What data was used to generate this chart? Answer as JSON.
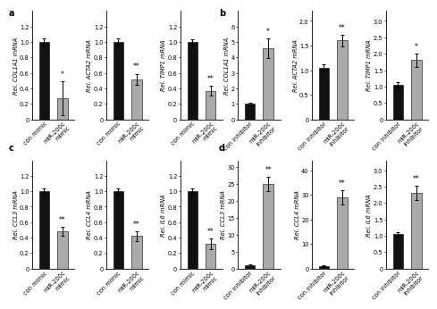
{
  "panels": {
    "a": {
      "label": "a",
      "subplots": [
        {
          "ylabel": "Rel. COL1A1 mRNA",
          "bars": [
            1.0,
            0.27
          ],
          "errors": [
            0.05,
            0.22
          ],
          "colors": [
            "#111111",
            "#aaaaaa"
          ],
          "xticks": [
            "con mimic",
            "miR-200c\nmimic"
          ],
          "ylim": [
            0,
            1.4
          ],
          "yticks": [
            0,
            0.2,
            0.4,
            0.6,
            0.8,
            1.0,
            1.2
          ],
          "ytick_labels": [
            "0",
            "0.2",
            "0.4",
            "0.6",
            "0.8",
            "1.0",
            "1.2"
          ],
          "sig": "*",
          "sig_on": 1
        },
        {
          "ylabel": "Rel. ACTA2 mRNA",
          "bars": [
            1.0,
            0.52
          ],
          "errors": [
            0.05,
            0.07
          ],
          "colors": [
            "#111111",
            "#aaaaaa"
          ],
          "xticks": [
            "con mimic",
            "miR-200c\nmimic"
          ],
          "ylim": [
            0,
            1.4
          ],
          "yticks": [
            0,
            0.2,
            0.4,
            0.6,
            0.8,
            1.0,
            1.2
          ],
          "ytick_labels": [
            "0",
            "0.2",
            "0.4",
            "0.6",
            "0.8",
            "1.0",
            "1.2"
          ],
          "sig": "**",
          "sig_on": 1
        },
        {
          "ylabel": "Rel. TIMP1 mRNA",
          "bars": [
            1.0,
            0.37
          ],
          "errors": [
            0.04,
            0.06
          ],
          "colors": [
            "#111111",
            "#aaaaaa"
          ],
          "xticks": [
            "con mimic",
            "miR-200c\nmimic"
          ],
          "ylim": [
            0,
            1.4
          ],
          "yticks": [
            0,
            0.2,
            0.4,
            0.6,
            0.8,
            1.0,
            1.2
          ],
          "ytick_labels": [
            "0",
            "0.2",
            "0.4",
            "0.6",
            "0.8",
            "1.0",
            "1.2"
          ],
          "sig": "**",
          "sig_on": 1
        }
      ]
    },
    "b": {
      "label": "b",
      "subplots": [
        {
          "ylabel": "Rel. COL1A1 mRNA",
          "bars": [
            1.0,
            4.6
          ],
          "errors": [
            0.1,
            0.65
          ],
          "colors": [
            "#111111",
            "#aaaaaa"
          ],
          "xticks": [
            "con inhibitor",
            "miR-200c\ninhibitor"
          ],
          "ylim": [
            0,
            7.0
          ],
          "yticks": [
            0,
            1,
            2,
            3,
            4,
            5,
            6
          ],
          "ytick_labels": [
            "0",
            "1",
            "2",
            "3",
            "4",
            "5",
            "6"
          ],
          "sig": "*",
          "sig_on": 1
        },
        {
          "ylabel": "Rel. ACTA2 mRNA",
          "bars": [
            1.05,
            1.6
          ],
          "errors": [
            0.07,
            0.12
          ],
          "colors": [
            "#111111",
            "#aaaaaa"
          ],
          "xticks": [
            "con inhibitor",
            "miR-200c\ninhibitor"
          ],
          "ylim": [
            0,
            2.2
          ],
          "yticks": [
            0,
            0.5,
            1.0,
            1.5,
            2.0
          ],
          "ytick_labels": [
            "0",
            "0.5",
            "1.0",
            "1.5",
            "2.0"
          ],
          "sig": "**",
          "sig_on": 1
        },
        {
          "ylabel": "Rel. TIMP1 mRNA",
          "bars": [
            1.05,
            1.8
          ],
          "errors": [
            0.07,
            0.2
          ],
          "colors": [
            "#111111",
            "#aaaaaa"
          ],
          "xticks": [
            "con inhibitor",
            "miR-200c\ninhibitor"
          ],
          "ylim": [
            0,
            3.3
          ],
          "yticks": [
            0,
            0.5,
            1.0,
            1.5,
            2.0,
            2.5,
            3.0
          ],
          "ytick_labels": [
            "0",
            "0.5",
            "1.0",
            "1.5",
            "2.0",
            "2.5",
            "3.0"
          ],
          "sig": "*",
          "sig_on": 1
        }
      ]
    },
    "c": {
      "label": "c",
      "subplots": [
        {
          "ylabel": "Rel. CCL3 mRNA",
          "bars": [
            1.0,
            0.48
          ],
          "errors": [
            0.04,
            0.06
          ],
          "colors": [
            "#111111",
            "#aaaaaa"
          ],
          "xticks": [
            "con mimic",
            "miR-200c\nmimic"
          ],
          "ylim": [
            0,
            1.4
          ],
          "yticks": [
            0,
            0.2,
            0.4,
            0.6,
            0.8,
            1.0,
            1.2
          ],
          "ytick_labels": [
            "0",
            "0.2",
            "0.4",
            "0.6",
            "0.8",
            "1.0",
            "1.2"
          ],
          "sig": "**",
          "sig_on": 1
        },
        {
          "ylabel": "Rel. CCL4 mRNA",
          "bars": [
            1.0,
            0.42
          ],
          "errors": [
            0.04,
            0.06
          ],
          "colors": [
            "#111111",
            "#aaaaaa"
          ],
          "xticks": [
            "con mimic",
            "miR-200c\nmimic"
          ],
          "ylim": [
            0,
            1.4
          ],
          "yticks": [
            0,
            0.2,
            0.4,
            0.6,
            0.8,
            1.0,
            1.2
          ],
          "ytick_labels": [
            "0",
            "0.2",
            "0.4",
            "0.6",
            "0.8",
            "1.0",
            "1.2"
          ],
          "sig": "**",
          "sig_on": 1
        },
        {
          "ylabel": "Rel. IL6 mRNA",
          "bars": [
            1.0,
            0.32
          ],
          "errors": [
            0.04,
            0.07
          ],
          "colors": [
            "#111111",
            "#aaaaaa"
          ],
          "xticks": [
            "con mimic",
            "miR-200c\nmimic"
          ],
          "ylim": [
            0,
            1.4
          ],
          "yticks": [
            0,
            0.2,
            0.4,
            0.6,
            0.8,
            1.0,
            1.2
          ],
          "ytick_labels": [
            "0",
            "0.2",
            "0.4",
            "0.6",
            "0.8",
            "1.0",
            "1.2"
          ],
          "sig": "**",
          "sig_on": 1
        }
      ]
    },
    "d": {
      "label": "d",
      "subplots": [
        {
          "ylabel": "Rel. CCL3 mRNA",
          "bars": [
            1.0,
            25.0
          ],
          "errors": [
            0.2,
            2.2
          ],
          "colors": [
            "#111111",
            "#aaaaaa"
          ],
          "xticks": [
            "con inhibitor",
            "miR-200c\ninhibitor"
          ],
          "ylim": [
            0,
            32
          ],
          "yticks": [
            0,
            5,
            10,
            15,
            20,
            25,
            30
          ],
          "ytick_labels": [
            "0",
            "5",
            "10",
            "15",
            "20",
            "25",
            "30"
          ],
          "sig": "**",
          "sig_on": 1
        },
        {
          "ylabel": "Rel. CCL4 mRNA",
          "bars": [
            1.0,
            29.0
          ],
          "errors": [
            0.2,
            3.0
          ],
          "colors": [
            "#111111",
            "#aaaaaa"
          ],
          "xticks": [
            "con inhibitor",
            "miR-200c\ninhibitor"
          ],
          "ylim": [
            0,
            44
          ],
          "yticks": [
            0,
            10,
            20,
            30,
            40
          ],
          "ytick_labels": [
            "0",
            "10",
            "20",
            "30",
            "40"
          ],
          "sig": "**",
          "sig_on": 1
        },
        {
          "ylabel": "Rel. IL6 mRNA",
          "bars": [
            1.05,
            2.3
          ],
          "errors": [
            0.07,
            0.22
          ],
          "colors": [
            "#111111",
            "#aaaaaa"
          ],
          "xticks": [
            "con inhibitor",
            "miR-200c\ninhibitor"
          ],
          "ylim": [
            0,
            3.3
          ],
          "yticks": [
            0,
            0.5,
            1.0,
            1.5,
            2.0,
            2.5,
            3.0
          ],
          "ytick_labels": [
            "0",
            "0.5",
            "1.0",
            "1.5",
            "2.0",
            "2.5",
            "3.0"
          ],
          "sig": "**",
          "sig_on": 1
        }
      ]
    }
  },
  "panel_order": [
    "a",
    "b",
    "c",
    "d"
  ],
  "fontsize": 4.8,
  "label_fontsize": 7.0,
  "sig_fontsize": 5.5,
  "bar_width": 0.55,
  "fig_bg": "#ffffff"
}
